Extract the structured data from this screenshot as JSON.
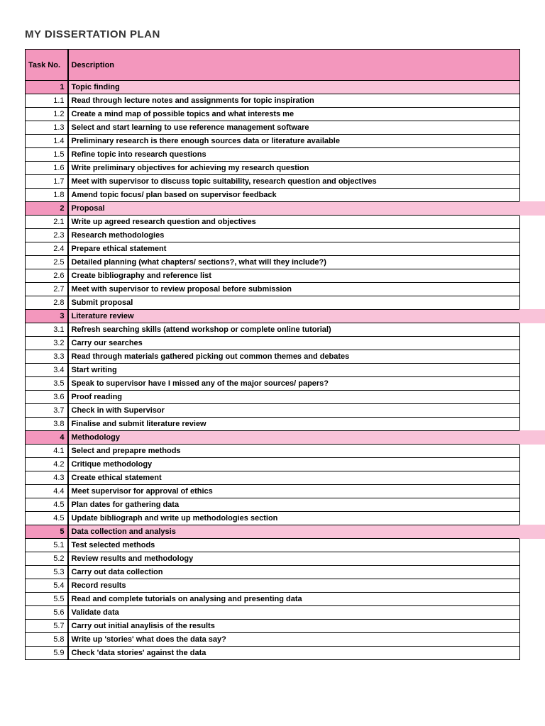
{
  "title": "MY DISSERTATION PLAN",
  "columns": {
    "task": "Task No.",
    "desc": "Description"
  },
  "colors": {
    "header_bg": "#f397bd",
    "section_task_bg": "#f397bd",
    "section_desc_bg": "#f9c3d9",
    "border": "#000000",
    "text": "#333333"
  },
  "rows": [
    {
      "type": "section",
      "task": "1",
      "desc": "Topic finding",
      "overflow": false
    },
    {
      "type": "item",
      "task": "1.1",
      "desc": "Read through lecture notes and assignments for topic inspiration"
    },
    {
      "type": "item",
      "task": "1.2",
      "desc": "Create a mind map of possible topics and what interests me"
    },
    {
      "type": "item",
      "task": "1.3",
      "desc": "Select and start learning to use reference management software"
    },
    {
      "type": "item",
      "task": "1.4",
      "desc": "Preliminary research is there enough sources data or literature available"
    },
    {
      "type": "item",
      "task": "1.5",
      "desc": "Refine topic into research questions"
    },
    {
      "type": "item",
      "task": "1.6",
      "desc": "Write preliminary objectives for achieving my research question"
    },
    {
      "type": "item",
      "task": "1.7",
      "desc": "Meet with supervisor to discuss topic suitability, research question and objectives"
    },
    {
      "type": "item",
      "task": "1.8",
      "desc": "Amend topic focus/ plan based on supervisor feedback"
    },
    {
      "type": "section",
      "task": "2",
      "desc": "Proposal",
      "overflow": true
    },
    {
      "type": "item",
      "task": "2.1",
      "desc": "Write up agreed research question and objectives"
    },
    {
      "type": "item",
      "task": "2.3",
      "desc": "Research methodologies"
    },
    {
      "type": "item",
      "task": "2.4",
      "desc": "Prepare ethical statement"
    },
    {
      "type": "item",
      "task": "2.5",
      "desc": "Detailed planning (what chapters/ sections?, what will they include?)"
    },
    {
      "type": "item",
      "task": "2.6",
      "desc": "Create bibliography and reference list"
    },
    {
      "type": "item",
      "task": "2.7",
      "desc": "Meet with supervisor to review proposal before submission"
    },
    {
      "type": "item",
      "task": "2.8",
      "desc": "Submit proposal"
    },
    {
      "type": "section",
      "task": "3",
      "desc": "Literature review",
      "overflow": true
    },
    {
      "type": "item",
      "task": "3.1",
      "desc": "Refresh searching skills (attend workshop or complete online tutorial)"
    },
    {
      "type": "item",
      "task": "3.2",
      "desc": "Carry our searches"
    },
    {
      "type": "item",
      "task": "3.3",
      "desc": "Read through materials gathered picking out common themes and debates"
    },
    {
      "type": "item",
      "task": "3.4",
      "desc": "Start writing"
    },
    {
      "type": "item",
      "task": "3.5",
      "desc": "Speak to supervisor have I missed any of the major sources/ papers?"
    },
    {
      "type": "item",
      "task": "3.6",
      "desc": "Proof reading"
    },
    {
      "type": "item",
      "task": "3.7",
      "desc": "Check in with Supervisor"
    },
    {
      "type": "item",
      "task": "3.8",
      "desc": "Finalise and submit literature review"
    },
    {
      "type": "section",
      "task": "4",
      "desc": "Methodology",
      "overflow": true
    },
    {
      "type": "item",
      "task": "4.1",
      "desc": "Select and prepapre methods"
    },
    {
      "type": "item",
      "task": "4.2",
      "desc": "Critique methodology"
    },
    {
      "type": "item",
      "task": "4.3",
      "desc": "Create ethical statement"
    },
    {
      "type": "item",
      "task": "4.4",
      "desc": "Meet supervisor for approval of ethics"
    },
    {
      "type": "item",
      "task": "4.5",
      "desc": "Plan dates for gathering data"
    },
    {
      "type": "item",
      "task": "4.5",
      "desc": "Update bibliograph and write up methodologies section"
    },
    {
      "type": "section",
      "task": "5",
      "desc": "Data collection and analysis",
      "overflow": true
    },
    {
      "type": "item",
      "task": "5.1",
      "desc": "Test selected methods"
    },
    {
      "type": "item",
      "task": "5.2",
      "desc": "Review results and methodology"
    },
    {
      "type": "item",
      "task": "5.3",
      "desc": "Carry out data collection"
    },
    {
      "type": "item",
      "task": "5.4",
      "desc": "Record results"
    },
    {
      "type": "item",
      "task": "5.5",
      "desc": "Read and complete tutorials on analysing and presenting data"
    },
    {
      "type": "item",
      "task": "5.6",
      "desc": "Validate data"
    },
    {
      "type": "item",
      "task": "5.7",
      "desc": "Carry out initial anaylisis of the results"
    },
    {
      "type": "item",
      "task": "5.8",
      "desc": "Write up 'stories' what does the data say?"
    },
    {
      "type": "item",
      "task": "5.9",
      "desc": "Check 'data stories' against the data"
    }
  ]
}
